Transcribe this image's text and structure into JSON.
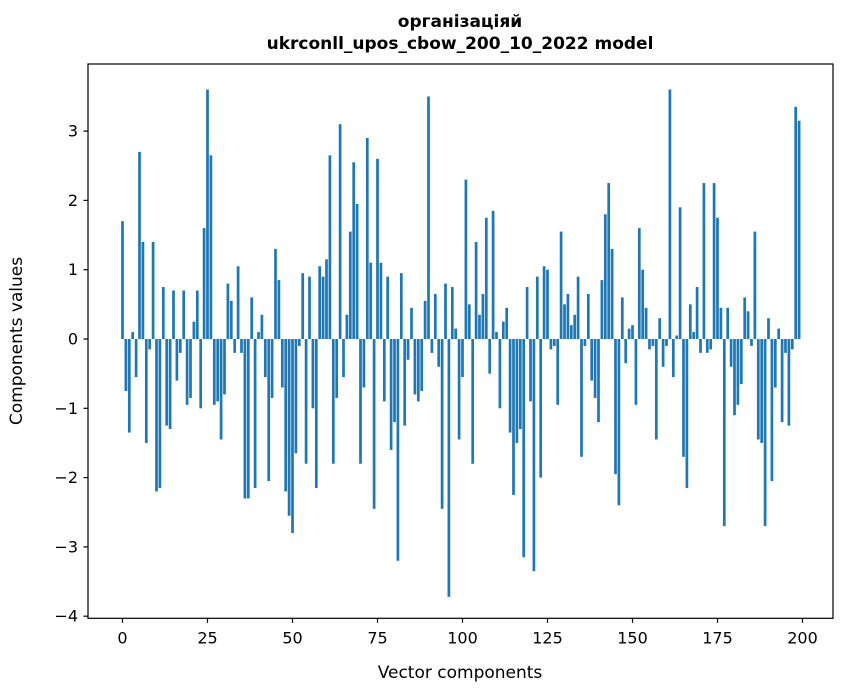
{
  "figure": {
    "title_line1": "організаціяй",
    "title_line2": "ukrconll_upos_cbow_200_10_2022 model",
    "xlabel": "Vector components",
    "ylabel": "Components values"
  },
  "chart_data": {
    "type": "bar",
    "title": "організаціяй\nukrconll_upos_cbow_200_10_2022 model",
    "xlabel": "Vector components",
    "ylabel": "Components values",
    "bar_color": "#1f77b4",
    "background_color": "#ffffff",
    "grid": false,
    "n_components": 200,
    "xlim": [
      -10.1,
      209.0
    ],
    "ylim": [
      -4.03,
      3.97
    ],
    "x_ticks": [
      0,
      25,
      50,
      75,
      100,
      125,
      150,
      175,
      200
    ],
    "y_ticks": [
      -4,
      -3,
      -2,
      -1,
      0,
      1,
      2,
      3
    ],
    "values": [
      1.7,
      -0.75,
      -1.35,
      0.1,
      -0.55,
      2.7,
      1.4,
      -1.5,
      -0.15,
      1.4,
      -2.2,
      -2.15,
      0.75,
      -1.25,
      -1.3,
      0.7,
      -0.6,
      -0.2,
      0.7,
      -0.95,
      -0.85,
      0.25,
      0.7,
      -1.0,
      1.6,
      3.6,
      2.65,
      -0.95,
      -0.9,
      -1.45,
      -0.8,
      0.8,
      0.55,
      -0.2,
      1.05,
      -0.2,
      -2.3,
      -2.3,
      0.6,
      -2.15,
      0.1,
      0.35,
      -0.55,
      -2.05,
      -0.85,
      1.3,
      0.85,
      -0.7,
      -2.2,
      -2.55,
      -2.8,
      -1.65,
      -0.1,
      0.95,
      -1.8,
      0.9,
      -1.0,
      -2.15,
      1.05,
      0.9,
      1.15,
      2.65,
      -1.8,
      -0.85,
      3.1,
      -0.55,
      0.35,
      1.55,
      2.55,
      1.95,
      -1.8,
      -0.7,
      2.9,
      1.1,
      -2.45,
      2.6,
      1.1,
      -0.9,
      0.9,
      -1.6,
      -1.2,
      -3.2,
      0.95,
      -1.25,
      -0.3,
      0.45,
      -0.8,
      -0.9,
      -0.75,
      0.55,
      3.5,
      -0.2,
      0.65,
      -0.4,
      -2.45,
      0.8,
      -3.72,
      0.75,
      0.15,
      -1.45,
      -0.55,
      2.3,
      0.5,
      -1.8,
      1.4,
      0.35,
      0.65,
      1.75,
      -0.5,
      1.85,
      0.1,
      -1.0,
      0.25,
      0.45,
      -1.35,
      -2.25,
      -1.5,
      -1.3,
      -3.15,
      0.75,
      -0.9,
      -3.35,
      0.9,
      -2.0,
      1.05,
      1.0,
      -0.15,
      -0.1,
      -0.95,
      1.55,
      0.5,
      0.65,
      0.2,
      0.35,
      0.9,
      -1.7,
      -0.1,
      0.65,
      -0.6,
      -0.85,
      -1.2,
      0.85,
      1.8,
      2.25,
      1.3,
      -1.95,
      -2.4,
      0.6,
      -0.35,
      0.15,
      0.2,
      -0.95,
      1.6,
      1.0,
      0.45,
      -0.15,
      -0.1,
      -1.45,
      0.3,
      -0.4,
      -0.1,
      3.6,
      -0.55,
      0.05,
      1.9,
      -1.7,
      -2.15,
      0.5,
      0.1,
      0.75,
      -0.2,
      2.25,
      -0.2,
      -0.15,
      2.25,
      1.75,
      0.45,
      -2.7,
      0.45,
      -0.4,
      -1.1,
      -0.95,
      -0.65,
      0.6,
      0.4,
      -0.1,
      1.55,
      -1.45,
      -1.5,
      -2.7,
      0.3,
      -2.05,
      -0.7,
      0.15,
      -1.2,
      -0.2,
      -1.25,
      -0.15,
      3.35,
      3.15
    ]
  }
}
